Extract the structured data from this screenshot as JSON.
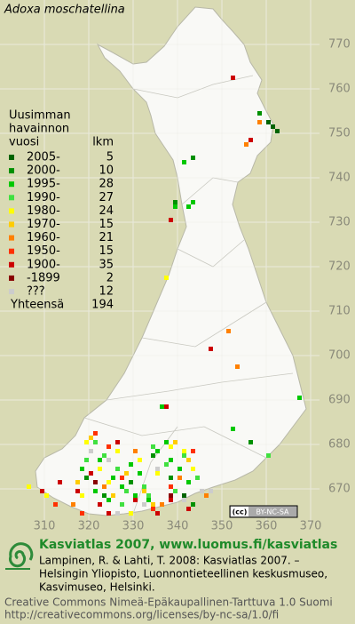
{
  "title": "Adoxa moschatellina",
  "legend": {
    "heading": [
      "Uusimman",
      "havainnon",
      "vuosi"
    ],
    "count_heading": "lkm",
    "total_label": "Yhteensä",
    "total": 194
  },
  "chart_data": {
    "type": "grid-map",
    "xlim": [
      300,
      372
    ],
    "ylim": [
      662,
      780
    ],
    "xticks": [
      310,
      320,
      330,
      340,
      350,
      360,
      370
    ],
    "yticks": [
      670,
      680,
      690,
      700,
      710,
      720,
      730,
      740,
      750,
      760,
      770
    ],
    "grid": true,
    "series": [
      {
        "name": "2005-",
        "color": "#006400",
        "count": 5,
        "x": [
          360,
          361,
          362,
          331,
          341
        ],
        "y": [
          752,
          751,
          750,
          673,
          668
        ]
      },
      {
        "name": "2000-",
        "color": "#009000",
        "count": 10,
        "x": [
          358,
          343,
          339,
          319,
          323,
          329,
          334,
          338,
          356,
          343
        ],
        "y": [
          754,
          744,
          734,
          672,
          668,
          671,
          677,
          672,
          680,
          666
        ]
      },
      {
        "name": "1995-",
        "color": "#00c800",
        "count": 28,
        "x": [
          341,
          342,
          343,
          339,
          367,
          336,
          352,
          320,
          322,
          325,
          327,
          330,
          333,
          335,
          337,
          338,
          340,
          342,
          318,
          321,
          324,
          329,
          331,
          336
        ],
        "y": [
          743,
          733,
          734,
          733,
          690,
          688,
          683,
          678,
          676,
          672,
          670,
          668,
          667,
          678,
          680,
          676,
          674,
          671,
          674,
          669,
          667,
          675,
          673,
          666
        ]
      },
      {
        "name": "1990-",
        "color": "#40e040",
        "count": 27,
        "x": [
          321,
          323,
          326,
          328,
          332,
          334,
          337,
          339,
          341,
          344,
          319,
          327,
          333,
          360
        ],
        "y": [
          680,
          677,
          674,
          669,
          670,
          679,
          675,
          669,
          677,
          672,
          676,
          666,
          668,
          677
        ]
      },
      {
        "name": "1980-",
        "color": "#ffff00",
        "count": 24,
        "x": [
          337,
          319,
          322,
          326,
          331,
          335,
          338,
          341,
          343,
          318,
          324,
          329,
          306,
          310
        ],
        "y": [
          717,
          680,
          674,
          678,
          676,
          673,
          679,
          678,
          674,
          668,
          671,
          664,
          670,
          668
        ]
      },
      {
        "name": "1970-",
        "color": "#ffcc00",
        "count": 15,
        "x": [
          320,
          325,
          332,
          339,
          342,
          317,
          328,
          334
        ],
        "y": [
          681,
          668,
          669,
          680,
          676,
          671,
          673,
          666
        ]
      },
      {
        "name": "1960-",
        "color": "#ff8000",
        "count": 21,
        "x": [
          358,
          355,
          351,
          353,
          323,
          330,
          336,
          340,
          316,
          346
        ],
        "y": [
          752,
          747,
          705,
          697,
          670,
          678,
          666,
          672,
          666,
          668
        ]
      },
      {
        "name": "1950-",
        "color": "#ff3000",
        "count": 15,
        "x": [
          321,
          327,
          334,
          338,
          318,
          324,
          343,
          312
        ],
        "y": [
          682,
          672,
          665,
          670,
          664,
          679,
          678,
          666
        ]
      },
      {
        "name": "1900-",
        "color": "#cc0000",
        "count": 35,
        "x": [
          352,
          356,
          338,
          347,
          337,
          320,
          322,
          326,
          330,
          335,
          338,
          342,
          317,
          324,
          309,
          313
        ],
        "y": [
          762,
          748,
          730,
          701,
          688,
          673,
          666,
          680,
          667,
          664,
          667,
          665,
          669,
          664,
          669,
          671
        ]
      },
      {
        "name": "-1899",
        "color": "#880000",
        "count": 2,
        "x": [
          321,
          338
        ],
        "y": [
          671,
          668
        ]
      },
      {
        "name": "???",
        "color": "#cccccc",
        "count": 12,
        "x": [
          324,
          332,
          345,
          347,
          326,
          335,
          320,
          341
        ],
        "y": [
          676,
          666,
          669,
          669,
          664,
          674,
          678,
          667
        ]
      }
    ]
  },
  "license_badge": "BY-NC-SA",
  "footer": {
    "heading": "Kasviatlas 2007, www.luomus.fi/kasviatlas",
    "citation": [
      "Lampinen, R. & Lahti, T. 2008: Kasviatlas 2007. –",
      "Helsingin Yliopisto, Luonnontieteellinen keskusmuseo,",
      "Kasvimuseo, Helsinki."
    ],
    "license": [
      "Creative Commons Nimeä-Epäkaupallinen-Tarttuva 1.0 Suomi",
      "http://creativecommons.org/licenses/by-nc-sa/1.0/fi"
    ]
  }
}
